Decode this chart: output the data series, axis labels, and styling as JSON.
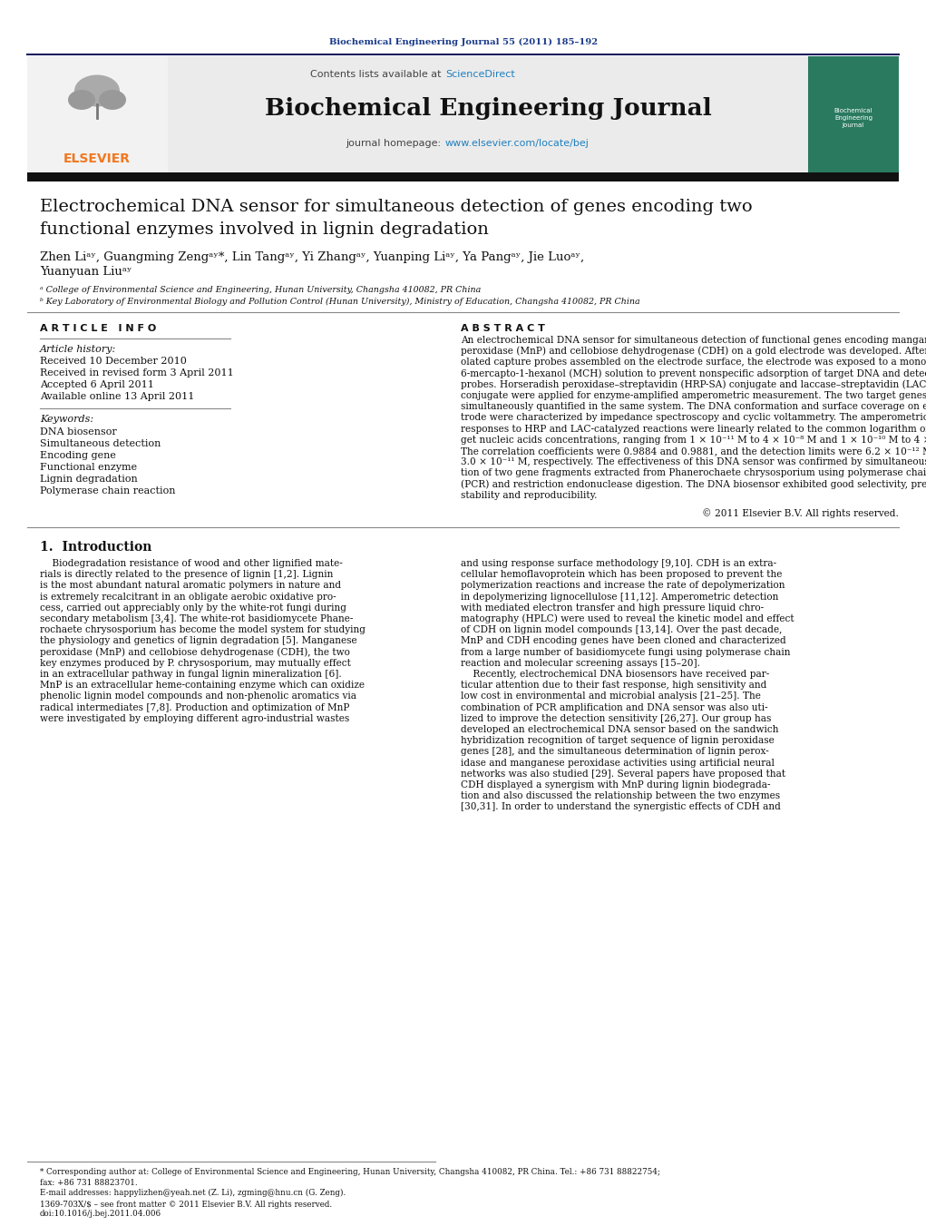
{
  "page_width": 10.21,
  "page_height": 13.51,
  "bg_color": "#ffffff",
  "top_citation": "Biochemical Engineering Journal 55 (2011) 185–192",
  "journal_name": "Biochemical Engineering Journal",
  "contents_line": "Contents lists available at ScienceDirect",
  "sciencedirect_color": "#2080c0",
  "homepage_url_color": "#2080c0",
  "elsevier_color": "#f07820",
  "header_bg": "#e8e8e8",
  "article_history_label": "Article history:",
  "received": "Received 10 December 2010",
  "received_revised": "Received in revised form 3 April 2011",
  "accepted": "Accepted 6 April 2011",
  "available": "Available online 13 April 2011",
  "keywords_label": "Keywords:",
  "keywords": [
    "DNA biosensor",
    "Simultaneous detection",
    "Encoding gene",
    "Functional enzyme",
    "Lignin degradation",
    "Polymerase chain reaction"
  ],
  "copyright": "© 2011 Elsevier B.V. All rights reserved.",
  "intro_heading": "1.  Introduction",
  "footnote_star": "* Corresponding author at: College of Environmental Science and Engineering, Hunan University, Changsha 410082, PR China. Tel.: +86 731 88822754;",
  "footnote_star2": "fax: +86 731 88823701.",
  "footnote_email": "E-mail addresses: happylizhen@yeah.net (Z. Li), zgming@hnu.cn (G. Zeng).",
  "footnote_issn": "1369-703X/$ – see front matter © 2011 Elsevier B.V. All rights reserved.",
  "footnote_doi": "doi:10.1016/j.bej.2011.04.006"
}
